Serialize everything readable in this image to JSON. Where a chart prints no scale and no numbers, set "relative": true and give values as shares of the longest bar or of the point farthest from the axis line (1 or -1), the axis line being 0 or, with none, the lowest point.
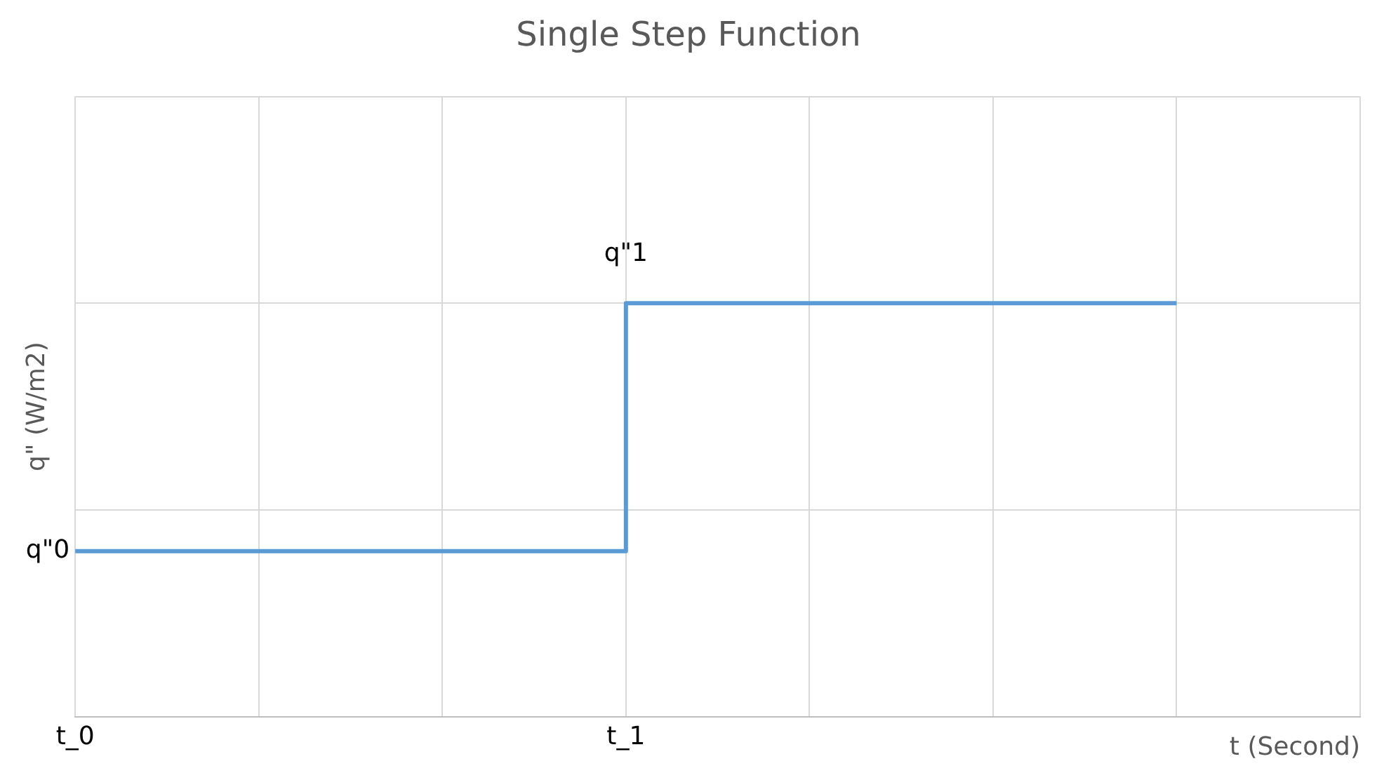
{
  "chart_data": {
    "type": "step",
    "title": "Single Step Function",
    "xlabel": "t (Second)",
    "ylabel": "q\" (W/m2)",
    "categories": [
      "t_0",
      null,
      null,
      "t_1",
      null,
      null,
      null,
      null
    ],
    "series": [
      {
        "color": "#5b9bd5",
        "values": [
          0.4,
          0.4,
          0.4,
          1,
          1,
          1,
          1,
          null
        ]
      }
    ],
    "relative": true,
    "grid": true,
    "legend": false,
    "marker": "none",
    "line_style": "solid",
    "annotations": [
      {
        "text": "q\"0",
        "x": "t_0",
        "y": 0.4
      },
      {
        "text": "q\"1",
        "x": "t_1",
        "y": 1
      }
    ]
  }
}
